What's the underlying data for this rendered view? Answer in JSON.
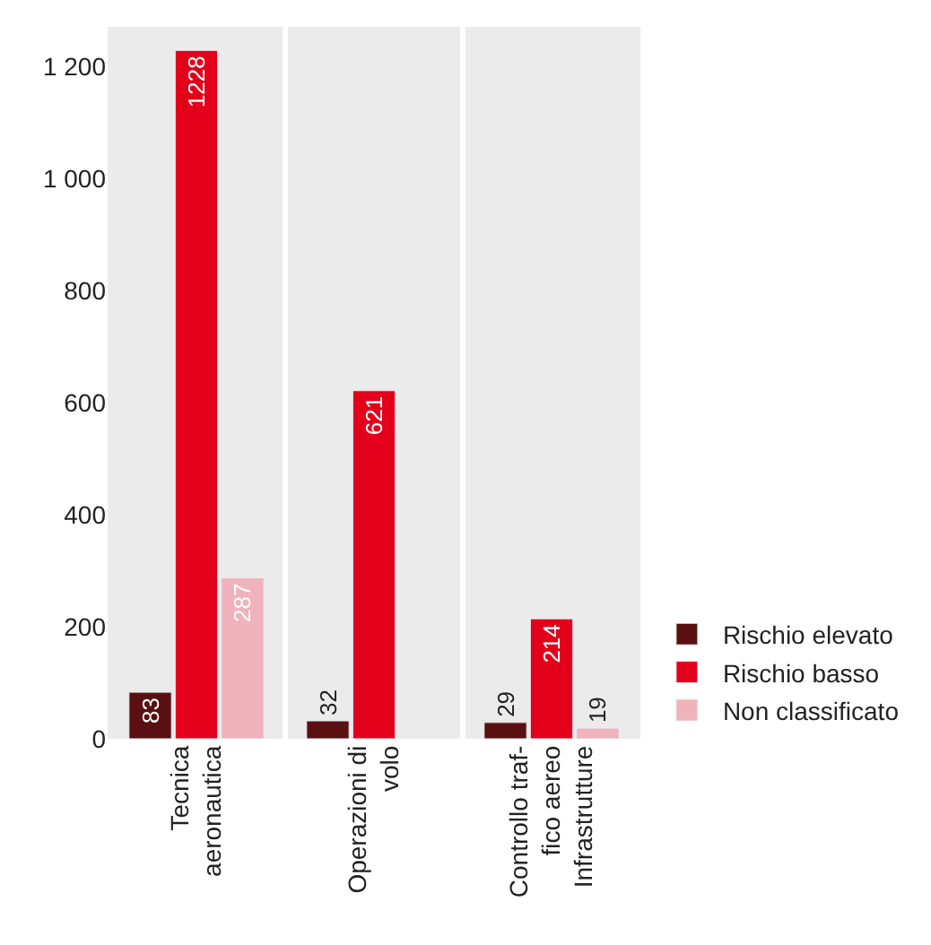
{
  "chart_data": {
    "type": "bar",
    "categories": [
      "Tecnica\naeronautica",
      "Operazioni di\nvolo",
      "Controllo traf-\nfico aereo\nInfrastrutture"
    ],
    "series": [
      {
        "name": "Rischio elevato",
        "color": "#5a1010",
        "values": [
          83,
          32,
          29
        ]
      },
      {
        "name": "Rischio basso",
        "color": "#e3001b",
        "values": [
          1228,
          621,
          214
        ]
      },
      {
        "name": "Non classificato",
        "color": "#f0b3bb",
        "values": [
          287,
          null,
          19
        ]
      }
    ],
    "ylim": [
      0,
      1270
    ],
    "yticks": [
      0,
      200,
      400,
      600,
      800,
      {
        "value": 1000,
        "label": "1 000"
      },
      {
        "value": 1200,
        "label": "1 200"
      }
    ],
    "data_labels": true,
    "legend": "right",
    "grid": false
  }
}
